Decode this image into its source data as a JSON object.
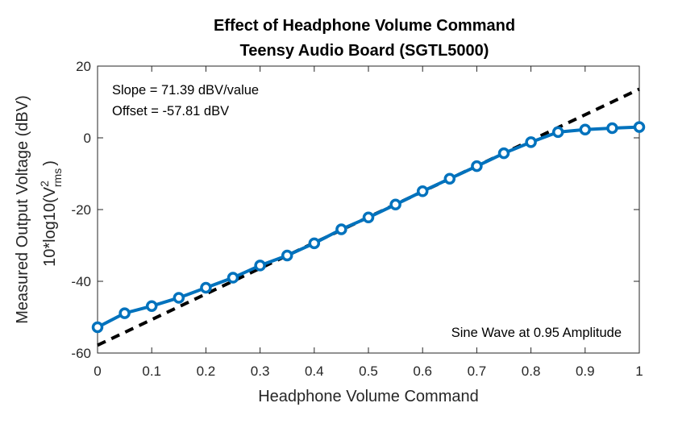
{
  "chart_data": {
    "type": "line",
    "title_line1": "Effect of Headphone Volume Command",
    "title_line2": "Teensy Audio Board (SGTL5000)",
    "xlabel": "Headphone Volume Command",
    "ylabel_line1": "Measured Output Voltage (dBV)",
    "ylabel_line2_prefix": "10*log10(V",
    "ylabel_line2_sup": "2",
    "ylabel_line2_sub": "rms",
    "ylabel_line2_suffix": ")",
    "xlim": [
      0,
      1
    ],
    "ylim": [
      -60,
      20
    ],
    "xticks": [
      0,
      0.1,
      0.2,
      0.3,
      0.4,
      0.5,
      0.6,
      0.7,
      0.8,
      0.9,
      1
    ],
    "xtick_labels": [
      "0",
      "0.1",
      "0.2",
      "0.3",
      "0.4",
      "0.5",
      "0.6",
      "0.7",
      "0.8",
      "0.9",
      "1"
    ],
    "yticks": [
      20,
      0,
      -20,
      -40,
      -60
    ],
    "ytick_labels": [
      "20",
      "0",
      "-20",
      "-40",
      "-60"
    ],
    "grid": false,
    "annotations": {
      "slope": "Slope = 71.39 dBV/value",
      "offset": "Offset = -57.81 dBV",
      "note": "Sine Wave at 0.95 Amplitude"
    },
    "series": [
      {
        "style": "solid line with circle markers",
        "color": "#0072BD",
        "x": [
          0,
          0.05,
          0.1,
          0.15,
          0.2,
          0.25,
          0.3,
          0.35,
          0.4,
          0.45,
          0.5,
          0.55,
          0.6,
          0.65,
          0.7,
          0.75,
          0.8,
          0.85,
          0.9,
          0.95,
          1
        ],
        "y": [
          -52.8,
          -48.9,
          -46.9,
          -44.6,
          -41.8,
          -39.0,
          -35.6,
          -32.8,
          -29.4,
          -25.5,
          -22.2,
          -18.6,
          -14.9,
          -11.4,
          -7.9,
          -4.3,
          -1.2,
          1.6,
          2.3,
          2.7,
          3.0
        ]
      },
      {
        "style": "dashed fit line",
        "color": "#000000",
        "x": [
          0,
          1
        ],
        "y": [
          -57.81,
          13.58
        ]
      }
    ]
  }
}
